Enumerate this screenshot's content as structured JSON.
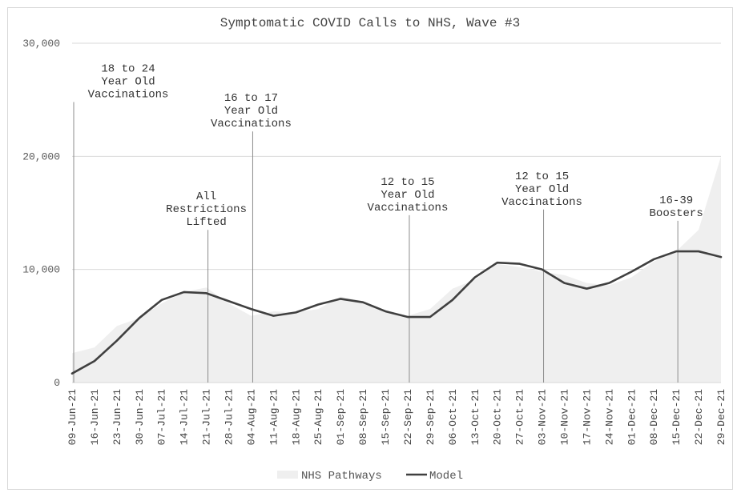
{
  "chart_data": {
    "type": "area",
    "title": "Symptomatic COVID Calls to NHS, Wave #3",
    "xlabel": "",
    "ylabel": "",
    "ylim": [
      0,
      30000
    ],
    "y_ticks": [
      {
        "value": 0,
        "label": "0"
      },
      {
        "value": 10000,
        "label": "10,000"
      },
      {
        "value": 20000,
        "label": "20,000"
      },
      {
        "value": 30000,
        "label": "30,000"
      }
    ],
    "grid": true,
    "legend_position": "bottom",
    "categories": [
      "09-Jun-21",
      "16-Jun-21",
      "23-Jun-21",
      "30-Jun-21",
      "07-Jul-21",
      "14-Jul-21",
      "21-Jul-21",
      "28-Jul-21",
      "04-Aug-21",
      "11-Aug-21",
      "18-Aug-21",
      "25-Aug-21",
      "01-Sep-21",
      "08-Sep-21",
      "15-Sep-21",
      "22-Sep-21",
      "29-Sep-21",
      "06-Oct-21",
      "13-Oct-21",
      "20-Oct-21",
      "27-Oct-21",
      "03-Nov-21",
      "10-Nov-21",
      "17-Nov-21",
      "24-Nov-21",
      "01-Dec-21",
      "08-Dec-21",
      "15-Dec-21",
      "22-Dec-21",
      "29-Dec-21"
    ],
    "series": [
      {
        "name": "NHS Pathways",
        "kind": "area",
        "color": "#efefef",
        "values": [
          2600,
          3100,
          5000,
          5700,
          7000,
          8000,
          8400,
          7000,
          5900,
          6300,
          6200,
          6500,
          7600,
          7200,
          6400,
          5900,
          6500,
          8300,
          9100,
          10500,
          10200,
          9800,
          9500,
          8800,
          8600,
          9300,
          10700,
          11600,
          13500,
          20000
        ]
      },
      {
        "name": "Model",
        "kind": "line",
        "color": "#404040",
        "values": [
          800,
          1900,
          3700,
          5700,
          7300,
          8000,
          7900,
          7200,
          6500,
          5900,
          6200,
          6900,
          7400,
          7100,
          6300,
          5800,
          5800,
          7300,
          9300,
          10600,
          10500,
          10000,
          8800,
          8300,
          8800,
          9800,
          10900,
          11600,
          11600,
          11100
        ]
      }
    ],
    "annotations": [
      {
        "category": "09-Jun-21",
        "value": 24800,
        "lines": [
          "18 to 24",
          "Year Old",
          "Vaccinations"
        ]
      },
      {
        "category": "21-Jul-21",
        "value": 13500,
        "lines": [
          "All",
          "Restrictions",
          "Lifted"
        ]
      },
      {
        "category": "04-Aug-21",
        "value": 22200,
        "lines": [
          "16 to 17",
          "Year Old",
          "Vaccinations"
        ]
      },
      {
        "category": "22-Sep-21",
        "value": 14800,
        "lines": [
          "12 to 15",
          "Year Old",
          "Vaccinations"
        ]
      },
      {
        "category": "03-Nov-21",
        "value": 15300,
        "lines": [
          "12 to 15",
          "Year Old",
          "Vaccinations"
        ]
      },
      {
        "category": "15-Dec-21",
        "value": 14300,
        "lines": [
          "16-39",
          "Boosters"
        ]
      }
    ]
  }
}
